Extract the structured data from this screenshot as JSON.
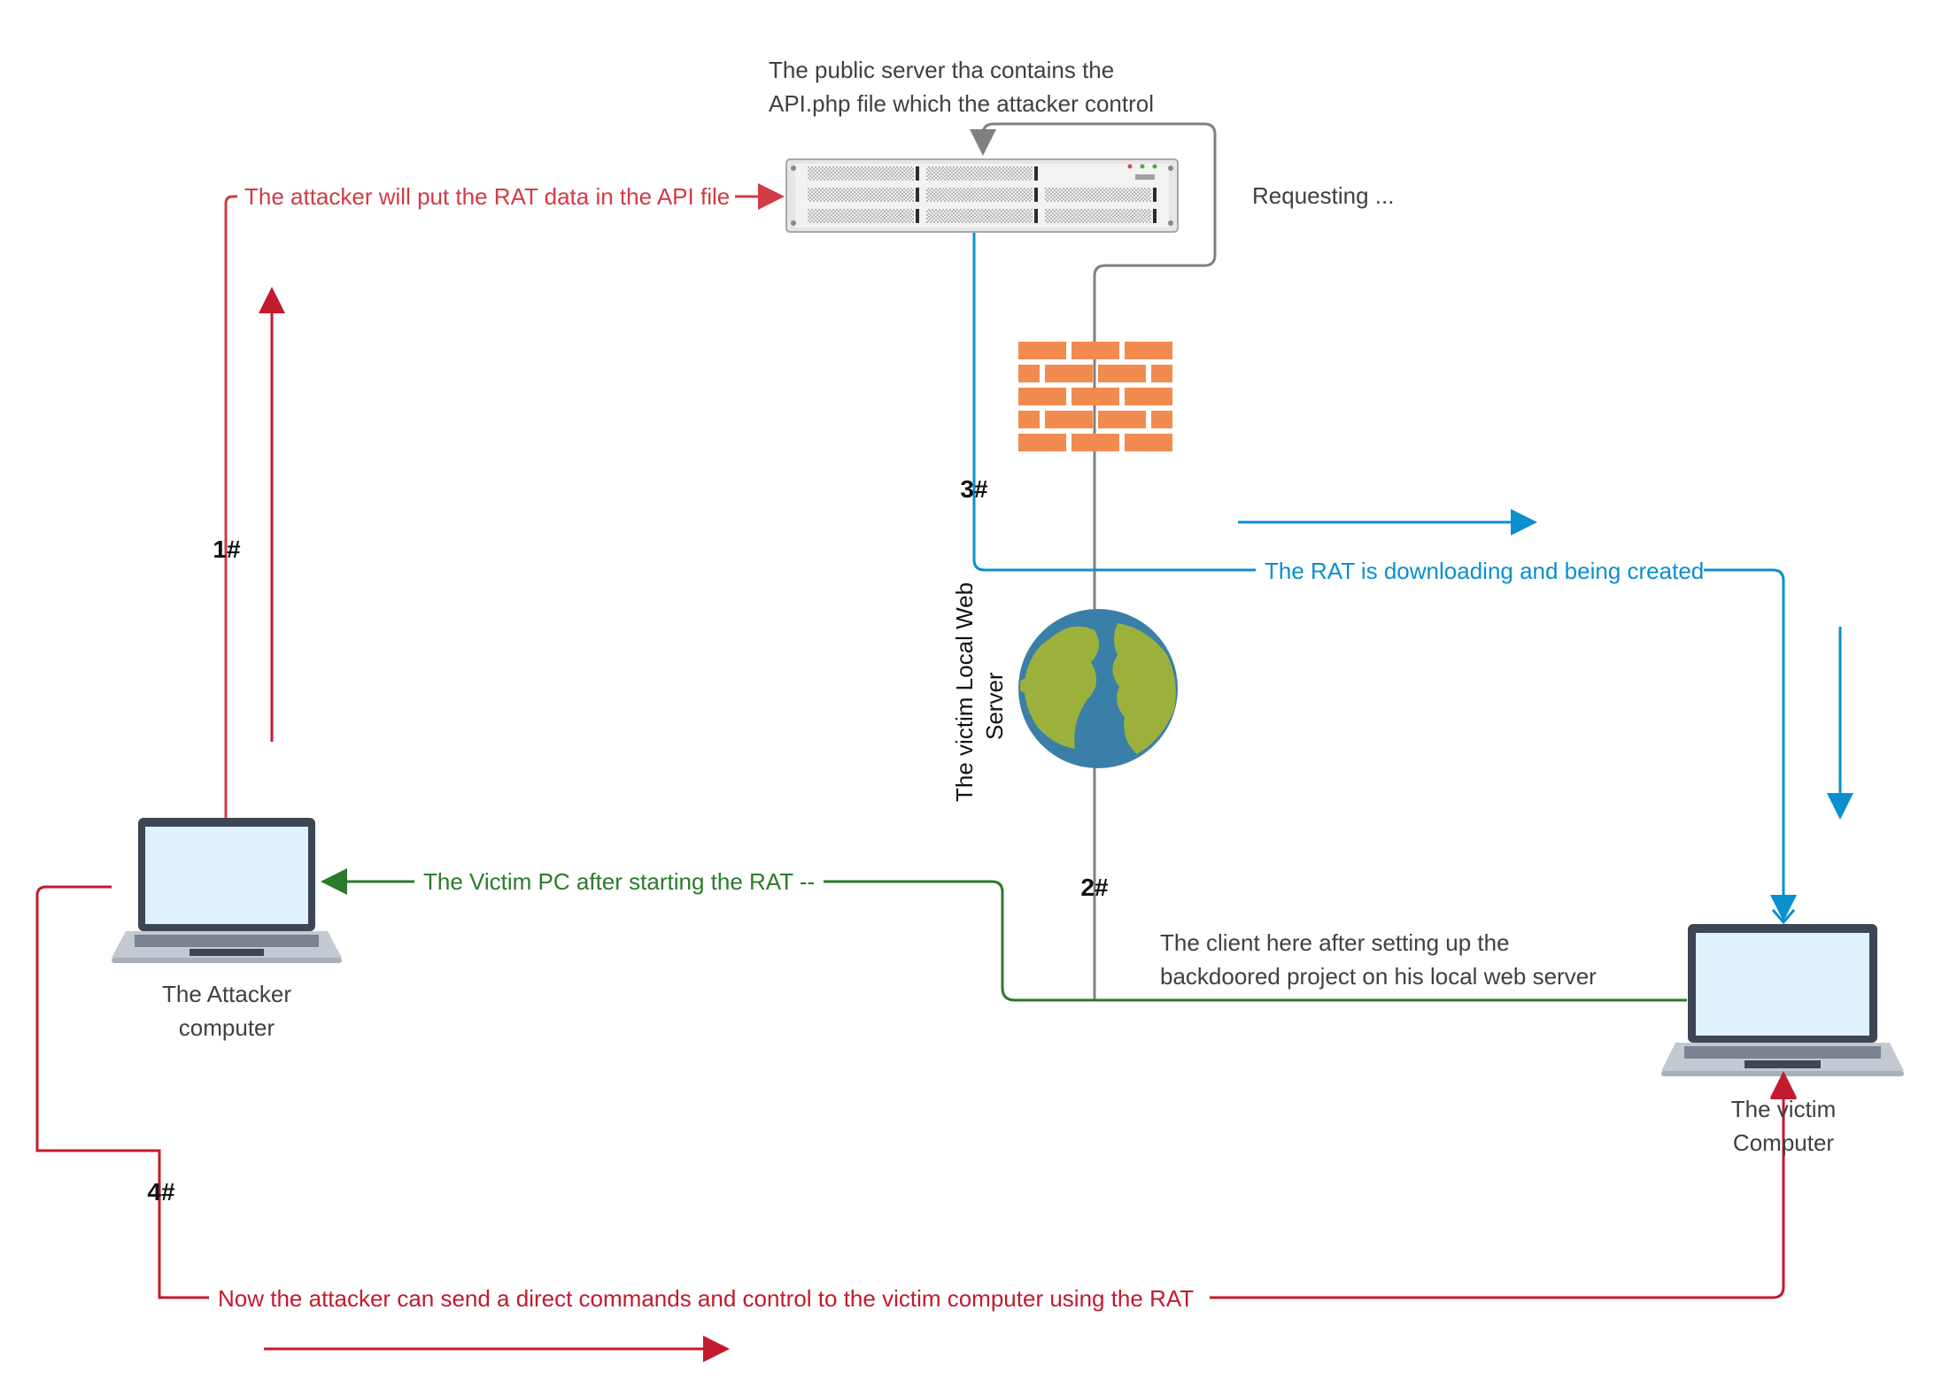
{
  "colors": {
    "red": "#d23a46",
    "crimson": "#c21a2e",
    "blue": "#0a8fcf",
    "green": "#2b7a2b",
    "gray": "#808080",
    "firewall": "#f28b50",
    "laptop_frame": "#3c4654",
    "laptop_screen": "#dff1fb",
    "globe_ocean": "#3a7fa8",
    "globe_land": "#9bb13c"
  },
  "nodes": {
    "public_server": {
      "icon": "rack-server-icon",
      "label_line1": "The public server tha contains the",
      "label_line2": "API.php file which the attacker control"
    },
    "firewall": {
      "icon": "firewall-brick-icon"
    },
    "victim_local_server": {
      "icon": "globe-icon",
      "label_line1": "The victim Local Web",
      "label_line2": "Server"
    },
    "attacker_computer": {
      "icon": "laptop-icon",
      "label_line1": "The Attacker",
      "label_line2": "computer"
    },
    "victim_computer": {
      "icon": "laptop-icon",
      "label_line1": "The victim",
      "label_line2": "Computer"
    }
  },
  "edges": {
    "attacker_to_api": "The attacker will put the RAT data in the API file",
    "requesting": "Requesting ...",
    "rat_downloading": "The RAT is downloading and being created",
    "victim_to_attacker": "The Victim PC after starting the RAT --",
    "client_setup_line1": "The client here after setting up the",
    "client_setup_line2": "backdoored project on his local web server",
    "attacker_commands": "Now the attacker can send a direct  commands and control to the victim computer using the RAT"
  },
  "steps": {
    "step1": "1#",
    "step2": "2#",
    "step3": "3#",
    "step4": "4#"
  }
}
